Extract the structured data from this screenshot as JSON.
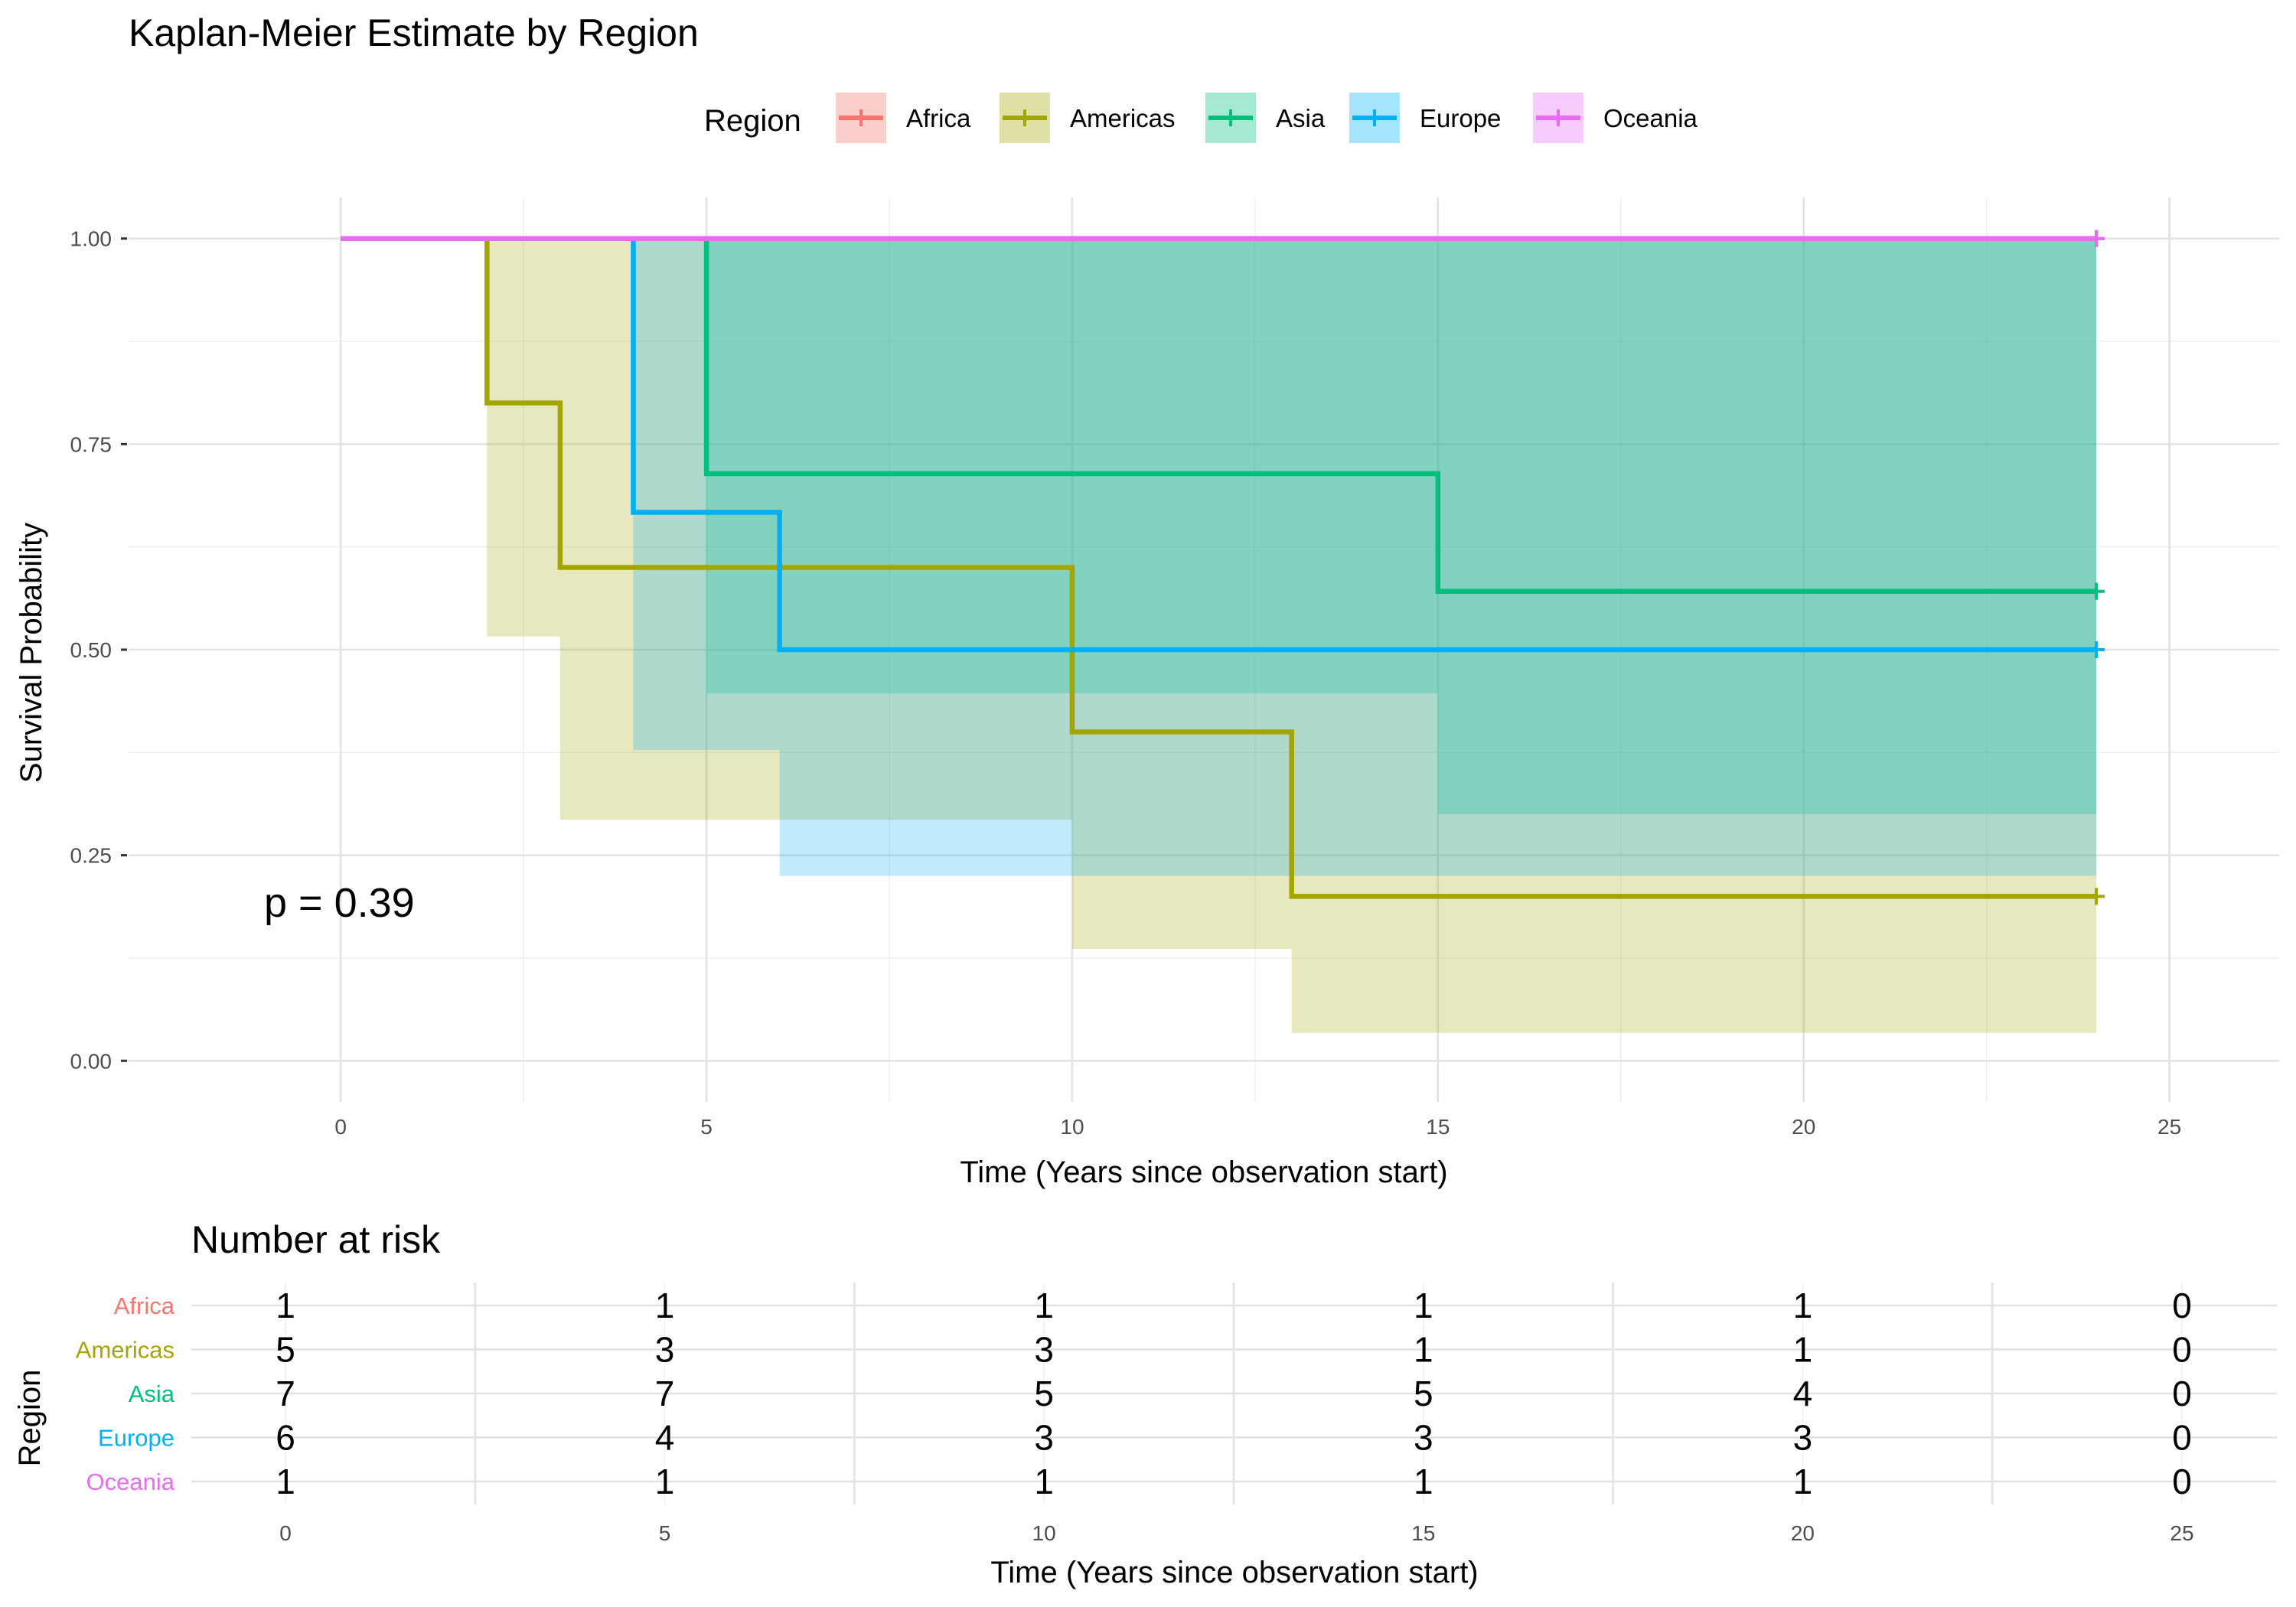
{
  "chart_data": [
    {
      "type": "line",
      "subtype": "kaplan-meier step curves with confidence bands",
      "title": "Kaplan-Meier Estimate by Region",
      "xlabel": "Time (Years since observation start)",
      "ylabel": "Survival Probability",
      "xlim": [
        -2.9,
        26.5
      ],
      "ylim": [
        -0.05,
        1.05
      ],
      "xticks": [
        0,
        5,
        10,
        15,
        20,
        25
      ],
      "xtick_labels": [
        "0",
        "5",
        "10",
        "15",
        "20",
        "25"
      ],
      "yticks": [
        0,
        0.25,
        0.5,
        0.75,
        1.0
      ],
      "ytick_labels": [
        "0.00",
        "0.25",
        "0.50",
        "0.75",
        "1.00"
      ],
      "grid": true,
      "legend": {
        "title": "Region",
        "position": "top",
        "entries": [
          "Africa",
          "Americas",
          "Asia",
          "Europe",
          "Oceania"
        ]
      },
      "annotation": "p = 0.39",
      "series": [
        {
          "name": "Africa",
          "color": "#F8766D",
          "steps": [
            [
              0,
              1.0
            ],
            [
              24,
              1.0
            ]
          ],
          "ci_upper": [
            [
              0,
              1.0
            ],
            [
              24,
              1.0
            ]
          ],
          "ci_lower": [
            [
              0,
              1.0
            ],
            [
              24,
              1.0
            ]
          ],
          "censor": [
            [
              24,
              1.0
            ]
          ]
        },
        {
          "name": "Americas",
          "color": "#A3A500",
          "steps": [
            [
              0,
              1.0
            ],
            [
              2,
              0.8
            ],
            [
              3,
              0.6
            ],
            [
              10,
              0.4
            ],
            [
              13,
              0.2
            ],
            [
              24,
              0.2
            ]
          ],
          "ci_upper": [
            [
              0,
              1.0
            ],
            [
              24,
              1.0
            ]
          ],
          "ci_lower": [
            [
              0,
              1.0
            ],
            [
              2,
              0.516
            ],
            [
              3,
              0.293
            ],
            [
              10,
              0.136
            ],
            [
              13,
              0.034
            ],
            [
              24,
              0.034
            ]
          ],
          "censor": [
            [
              24,
              0.2
            ]
          ]
        },
        {
          "name": "Asia",
          "color": "#00BF7D",
          "steps": [
            [
              0,
              1.0
            ],
            [
              5,
              0.714
            ],
            [
              15,
              0.571
            ],
            [
              24,
              0.571
            ]
          ],
          "ci_upper": [
            [
              0,
              1.0
            ],
            [
              24,
              1.0
            ]
          ],
          "ci_lower": [
            [
              0,
              1.0
            ],
            [
              5,
              0.447
            ],
            [
              15,
              0.3
            ],
            [
              24,
              0.3
            ]
          ],
          "censor": [
            [
              24,
              0.571
            ]
          ]
        },
        {
          "name": "Europe",
          "color": "#00B0F6",
          "steps": [
            [
              0,
              1.0
            ],
            [
              4,
              0.667
            ],
            [
              6,
              0.5
            ],
            [
              24,
              0.5
            ]
          ],
          "ci_upper": [
            [
              0,
              1.0
            ],
            [
              24,
              1.0
            ]
          ],
          "ci_lower": [
            [
              0,
              1.0
            ],
            [
              4,
              0.378
            ],
            [
              6,
              0.225
            ],
            [
              24,
              0.225
            ]
          ],
          "censor": [
            [
              24,
              0.5
            ]
          ]
        },
        {
          "name": "Oceania",
          "color": "#E76BF3",
          "steps": [
            [
              0,
              1.0
            ],
            [
              24,
              1.0
            ]
          ],
          "ci_upper": [
            [
              0,
              1.0
            ],
            [
              24,
              1.0
            ]
          ],
          "ci_lower": [
            [
              0,
              1.0
            ],
            [
              24,
              1.0
            ]
          ],
          "censor": [
            [
              24,
              1.0
            ]
          ]
        }
      ]
    },
    {
      "type": "table",
      "title": "Number at risk",
      "xlabel": "Time (Years since observation start)",
      "ylabel": "Region",
      "xticks": [
        0,
        5,
        10,
        15,
        20,
        25
      ],
      "xtick_labels": [
        "0",
        "5",
        "10",
        "15",
        "20",
        "25"
      ],
      "rows": [
        {
          "name": "Africa",
          "color": "#F8766D",
          "values": [
            1,
            1,
            1,
            1,
            1,
            0
          ]
        },
        {
          "name": "Americas",
          "color": "#A3A500",
          "values": [
            5,
            3,
            3,
            1,
            1,
            0
          ]
        },
        {
          "name": "Asia",
          "color": "#00BF7D",
          "values": [
            7,
            7,
            5,
            5,
            4,
            0
          ]
        },
        {
          "name": "Europe",
          "color": "#00B0F6",
          "values": [
            6,
            4,
            3,
            3,
            3,
            0
          ]
        },
        {
          "name": "Oceania",
          "color": "#E76BF3",
          "values": [
            1,
            1,
            1,
            1,
            1,
            0
          ]
        }
      ]
    }
  ]
}
